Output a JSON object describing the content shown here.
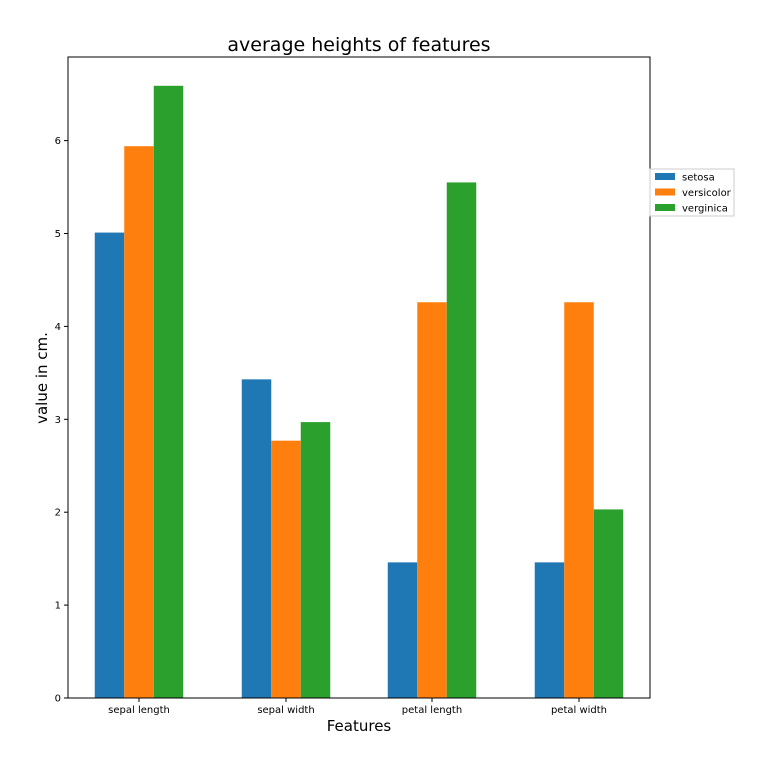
{
  "chart_data": {
    "type": "bar",
    "title": "average heights of features",
    "xlabel": "Features",
    "ylabel": "value in cm.",
    "categories": [
      "sepal length",
      "sepal width",
      "petal length",
      "petal width"
    ],
    "ylim": [
      0,
      6.9
    ],
    "yticks": [
      "0",
      "1",
      "2",
      "3",
      "4",
      "5",
      "6"
    ],
    "series": [
      {
        "name": "setosa",
        "color": "#1f77b4",
        "values": [
          5.01,
          3.43,
          1.46,
          1.46
        ]
      },
      {
        "name": "versicolor",
        "color": "#ff7f0e",
        "values": [
          5.94,
          2.77,
          4.26,
          4.26
        ]
      },
      {
        "name": "verginica",
        "color": "#2ca02c",
        "values": [
          6.59,
          2.97,
          5.55,
          2.03
        ]
      }
    ],
    "legend": "right",
    "grid": false
  }
}
